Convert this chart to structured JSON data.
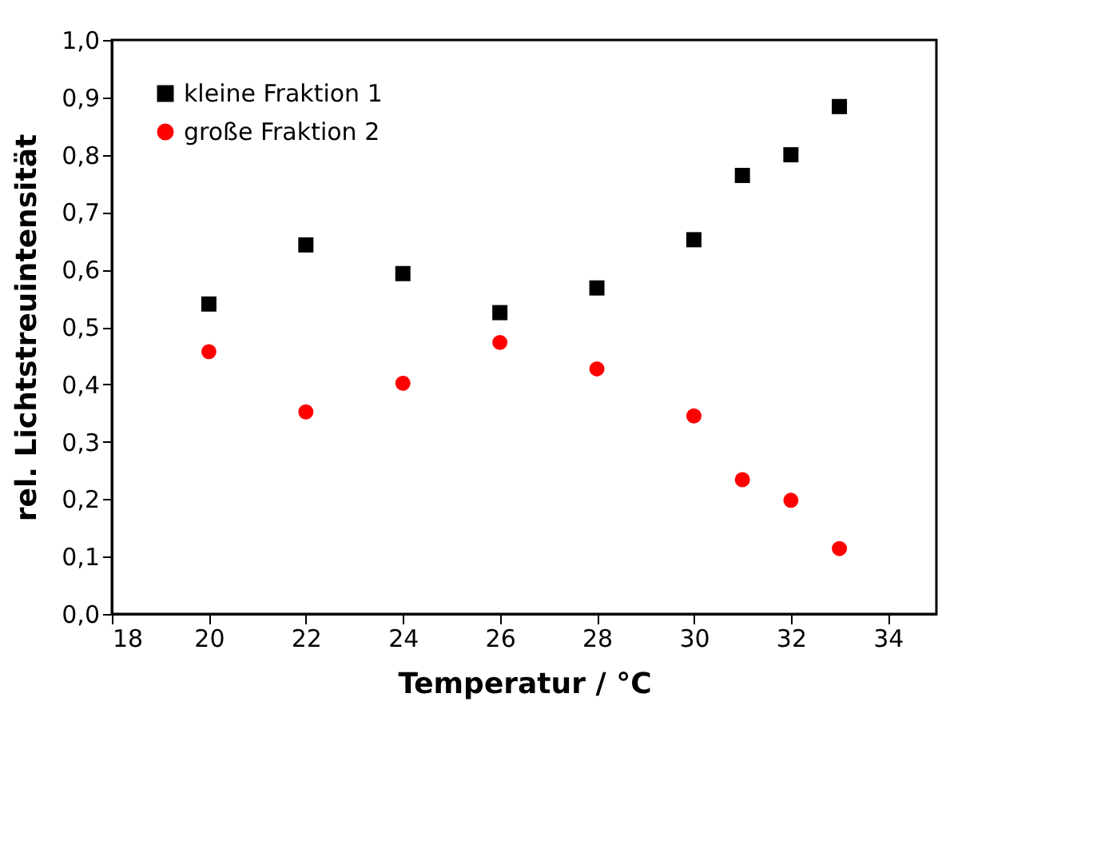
{
  "chart_data": {
    "type": "scatter",
    "xlabel": "Temperatur / °C",
    "ylabel": "rel. Lichtstreuintensität",
    "x": [
      20,
      22,
      24,
      26,
      28,
      30,
      31,
      32,
      33
    ],
    "series": [
      {
        "name": "kleine Fraktion 1",
        "color": "#000000",
        "marker": "square",
        "values": [
          0.54,
          0.643,
          0.593,
          0.525,
          0.568,
          0.652,
          0.764,
          0.8,
          0.884
        ]
      },
      {
        "name": "große Fraktion 2",
        "color": "#ff0000",
        "marker": "circle",
        "values": [
          0.457,
          0.352,
          0.402,
          0.473,
          0.427,
          0.345,
          0.234,
          0.198,
          0.114
        ]
      }
    ],
    "xlim": [
      18,
      35
    ],
    "xticks": [
      18,
      20,
      22,
      24,
      26,
      28,
      30,
      32,
      34
    ],
    "ylim": [
      0,
      1
    ],
    "yticks": [
      {
        "value": 0,
        "label": "0,0"
      },
      {
        "value": 0.1,
        "label": "0,1"
      },
      {
        "value": 0.2,
        "label": "0,2"
      },
      {
        "value": 0.3,
        "label": "0,3"
      },
      {
        "value": 0.4,
        "label": "0,4"
      },
      {
        "value": 0.5,
        "label": "0,5"
      },
      {
        "value": 0.6,
        "label": "0,6"
      },
      {
        "value": 0.7,
        "label": "0,7"
      },
      {
        "value": 0.8,
        "label": "0,8"
      },
      {
        "value": 0.9,
        "label": "0,9"
      },
      {
        "value": 1,
        "label": "1,0"
      }
    ],
    "grid": false,
    "legend": "top left"
  }
}
